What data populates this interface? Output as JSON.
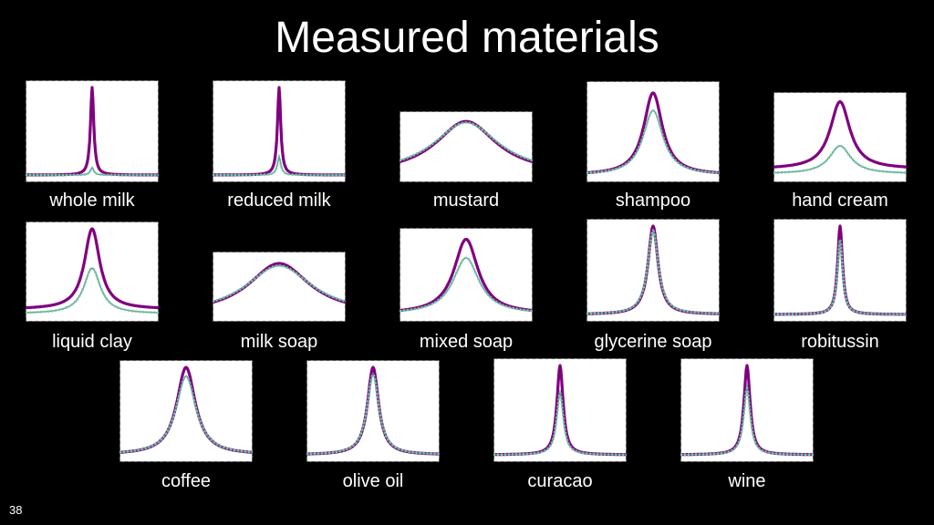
{
  "slide": {
    "title": "Measured materials",
    "page_number": "38"
  },
  "colors": {
    "background": "#000000",
    "panel_fill": "#ffffff",
    "panel_border": "#555555",
    "measured_curve": "#800080",
    "fit_curve": "#5fd39a",
    "fit_curve_overlay": "#7f7f9f"
  },
  "panels": [
    {
      "label": "whole milk",
      "peak_width": 0.015,
      "measured_peak": 1.0,
      "fit_peak": 0.1,
      "baseline": 0.02,
      "fit_baseline": 0.02
    },
    {
      "label": "reduced milk",
      "peak_width": 0.015,
      "measured_peak": 1.0,
      "fit_peak": 0.22,
      "baseline": 0.02,
      "fit_baseline": 0.02
    },
    {
      "label": "mustard",
      "peak_width": 0.28,
      "measured_peak": 0.95,
      "fit_peak": 0.93,
      "baseline": 0.04,
      "fit_baseline": 0.04
    },
    {
      "label": "shampoo",
      "peak_width": 0.085,
      "measured_peak": 0.95,
      "fit_peak": 0.75,
      "baseline": 0.02,
      "fit_baseline": 0.02
    },
    {
      "label": "hand cream",
      "peak_width": 0.09,
      "measured_peak": 0.97,
      "fit_peak": 0.4,
      "baseline": 0.1,
      "fit_baseline": 0.04
    },
    {
      "label": "liquid clay",
      "peak_width": 0.07,
      "measured_peak": 1.0,
      "fit_peak": 0.55,
      "baseline": 0.08,
      "fit_baseline": 0.03
    },
    {
      "label": "milk soap",
      "peak_width": 0.28,
      "measured_peak": 0.92,
      "fit_peak": 0.88,
      "baseline": 0.03,
      "fit_baseline": 0.03
    },
    {
      "label": "mixed soap",
      "peak_width": 0.11,
      "measured_peak": 0.95,
      "fit_peak": 0.72,
      "baseline": 0.03,
      "fit_baseline": 0.03
    },
    {
      "label": "glycerine soap",
      "peak_width": 0.045,
      "measured_peak": 1.0,
      "fit_peak": 0.95,
      "baseline": 0.02,
      "fit_baseline": 0.02
    },
    {
      "label": "robitussin",
      "peak_width": 0.022,
      "measured_peak": 1.0,
      "fit_peak": 0.85,
      "baseline": 0.02,
      "fit_baseline": 0.02
    },
    {
      "label": "coffee",
      "peak_width": 0.085,
      "measured_peak": 1.0,
      "fit_peak": 0.9,
      "baseline": 0.02,
      "fit_baseline": 0.02
    },
    {
      "label": "olive oil",
      "peak_width": 0.05,
      "measured_peak": 1.0,
      "fit_peak": 0.92,
      "baseline": 0.02,
      "fit_baseline": 0.02
    },
    {
      "label": "curacao",
      "peak_width": 0.028,
      "measured_peak": 1.0,
      "fit_peak": 0.7,
      "baseline": 0.02,
      "fit_baseline": 0.02
    },
    {
      "label": "wine",
      "peak_width": 0.028,
      "measured_peak": 1.0,
      "fit_peak": 0.75,
      "baseline": 0.02,
      "fit_baseline": 0.02
    }
  ]
}
